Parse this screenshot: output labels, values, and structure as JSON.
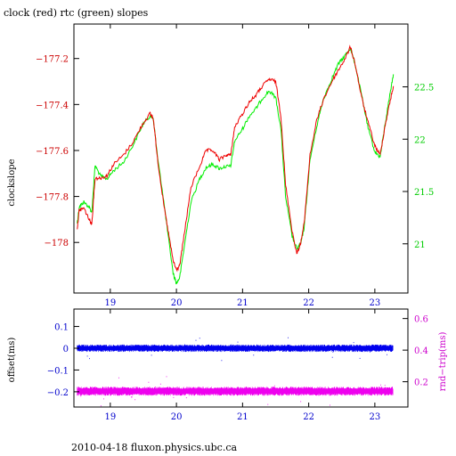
{
  "chart_data": [
    {
      "type": "line",
      "title": "clock (red) rtc (green) slopes",
      "ylabel_left": "clockslope",
      "xlim": [
        18.45,
        23.5
      ],
      "x_ticks": [
        19,
        20,
        21,
        22,
        23
      ],
      "x_tick_labels": [
        "19",
        "20",
        "21",
        "22",
        "23"
      ],
      "ylim_left": [
        -178.22,
        -177.05
      ],
      "left_ticks": [
        -178,
        -177.8,
        -177.6,
        -177.4,
        -177.2
      ],
      "left_tick_labels": [
        "−178",
        "−177.8",
        "−177.6",
        "−177.4",
        "−177.2"
      ],
      "ylim_right": [
        20.53,
        23.1
      ],
      "right_ticks": [
        21,
        21.5,
        22,
        22.5
      ],
      "right_tick_labels": [
        "21",
        "21.5",
        "22",
        "22.5"
      ],
      "colors": {
        "clock": "#ee0000",
        "rtc": "#00ee00",
        "axis": "#000000"
      },
      "series": [
        {
          "axis": "left",
          "color": "#ee0000",
          "points": [
            [
              18.5,
              -177.94
            ],
            [
              18.53,
              -177.86
            ],
            [
              18.6,
              -177.85
            ],
            [
              18.68,
              -177.9
            ],
            [
              18.72,
              -177.92
            ],
            [
              18.77,
              -177.72
            ],
            [
              18.85,
              -177.72
            ],
            [
              18.95,
              -177.71
            ],
            [
              19.05,
              -177.66
            ],
            [
              19.2,
              -177.62
            ],
            [
              19.35,
              -177.56
            ],
            [
              19.5,
              -177.48
            ],
            [
              19.6,
              -177.44
            ],
            [
              19.65,
              -177.46
            ],
            [
              19.72,
              -177.65
            ],
            [
              19.8,
              -177.82
            ],
            [
              19.88,
              -177.96
            ],
            [
              19.95,
              -178.08
            ],
            [
              20.0,
              -178.12
            ],
            [
              20.05,
              -178.1
            ],
            [
              20.12,
              -177.96
            ],
            [
              20.22,
              -177.76
            ],
            [
              20.35,
              -177.67
            ],
            [
              20.45,
              -177.6
            ],
            [
              20.55,
              -177.6
            ],
            [
              20.65,
              -177.64
            ],
            [
              20.75,
              -177.62
            ],
            [
              20.82,
              -177.62
            ],
            [
              20.88,
              -177.5
            ],
            [
              21.0,
              -177.44
            ],
            [
              21.1,
              -177.39
            ],
            [
              21.2,
              -177.36
            ],
            [
              21.3,
              -177.32
            ],
            [
              21.4,
              -177.29
            ],
            [
              21.5,
              -177.3
            ],
            [
              21.58,
              -177.45
            ],
            [
              21.65,
              -177.75
            ],
            [
              21.75,
              -177.95
            ],
            [
              21.82,
              -178.05
            ],
            [
              21.88,
              -178.0
            ],
            [
              21.93,
              -177.92
            ],
            [
              22.02,
              -177.62
            ],
            [
              22.12,
              -177.47
            ],
            [
              22.22,
              -177.38
            ],
            [
              22.35,
              -177.3
            ],
            [
              22.45,
              -177.25
            ],
            [
              22.55,
              -177.2
            ],
            [
              22.63,
              -177.15
            ],
            [
              22.7,
              -177.22
            ],
            [
              22.8,
              -177.37
            ],
            [
              22.9,
              -177.48
            ],
            [
              23.0,
              -177.58
            ],
            [
              23.08,
              -177.62
            ],
            [
              23.15,
              -177.5
            ],
            [
              23.22,
              -177.4
            ],
            [
              23.28,
              -177.32
            ]
          ]
        },
        {
          "axis": "right",
          "color": "#00ee00",
          "points": [
            [
              18.5,
              21.2
            ],
            [
              18.53,
              21.35
            ],
            [
              18.6,
              21.4
            ],
            [
              18.68,
              21.35
            ],
            [
              18.72,
              21.3
            ],
            [
              18.77,
              21.75
            ],
            [
              18.85,
              21.65
            ],
            [
              18.95,
              21.62
            ],
            [
              19.05,
              21.7
            ],
            [
              19.2,
              21.78
            ],
            [
              19.35,
              21.95
            ],
            [
              19.5,
              22.15
            ],
            [
              19.6,
              22.22
            ],
            [
              19.65,
              22.2
            ],
            [
              19.72,
              21.8
            ],
            [
              19.8,
              21.45
            ],
            [
              19.88,
              21.05
            ],
            [
              19.95,
              20.72
            ],
            [
              20.0,
              20.62
            ],
            [
              20.05,
              20.68
            ],
            [
              20.12,
              20.98
            ],
            [
              20.22,
              21.4
            ],
            [
              20.35,
              21.62
            ],
            [
              20.45,
              21.73
            ],
            [
              20.55,
              21.76
            ],
            [
              20.65,
              21.72
            ],
            [
              20.75,
              21.74
            ],
            [
              20.82,
              21.74
            ],
            [
              20.88,
              21.98
            ],
            [
              21.0,
              22.1
            ],
            [
              21.1,
              22.22
            ],
            [
              21.2,
              22.29
            ],
            [
              21.3,
              22.39
            ],
            [
              21.4,
              22.46
            ],
            [
              21.5,
              22.4
            ],
            [
              21.58,
              22.1
            ],
            [
              21.65,
              21.45
            ],
            [
              21.75,
              21.07
            ],
            [
              21.82,
              20.95
            ],
            [
              21.88,
              21.0
            ],
            [
              21.93,
              21.15
            ],
            [
              22.02,
              21.8
            ],
            [
              22.12,
              22.12
            ],
            [
              22.22,
              22.38
            ],
            [
              22.35,
              22.58
            ],
            [
              22.45,
              22.72
            ],
            [
              22.55,
              22.8
            ],
            [
              22.63,
              22.87
            ],
            [
              22.7,
              22.72
            ],
            [
              22.8,
              22.42
            ],
            [
              22.9,
              22.1
            ],
            [
              23.0,
              21.88
            ],
            [
              23.08,
              21.83
            ],
            [
              23.15,
              22.12
            ],
            [
              23.22,
              22.4
            ],
            [
              23.28,
              22.62
            ]
          ]
        }
      ]
    },
    {
      "type": "scatter",
      "ylabel_left": "offset(ms)",
      "ylabel_right": "rnd−trip(ms)",
      "xlim": [
        18.45,
        23.5
      ],
      "x_ticks": [
        19,
        20,
        21,
        22,
        23
      ],
      "x_tick_labels": [
        "19",
        "20",
        "21",
        "22",
        "23"
      ],
      "ylim_left": [
        -0.27,
        0.18
      ],
      "left_ticks": [
        -0.2,
        -0.1,
        0,
        0.1
      ],
      "left_tick_labels": [
        "−0.2",
        "−0.1",
        "0",
        "0.1"
      ],
      "ylim_right": [
        0.04,
        0.66
      ],
      "right_ticks": [
        0.2,
        0.4,
        0.6
      ],
      "right_tick_labels": [
        "0.2",
        "0.4",
        "0.6"
      ],
      "colors": {
        "offset": "#0000ee",
        "roundtrip": "#ee00ee",
        "axis": "#000000"
      },
      "series": [
        {
          "axis": "left",
          "color": "#0000ee",
          "x_range": [
            18.5,
            23.28
          ],
          "center": 0.0,
          "spread": 0.013
        },
        {
          "axis": "right",
          "color": "#ee00ee",
          "x_range": [
            18.5,
            23.28
          ],
          "center": 0.14,
          "spread": 0.022
        }
      ]
    }
  ],
  "footer": "2010-04-18 fluxon.physics.ubc.ca"
}
